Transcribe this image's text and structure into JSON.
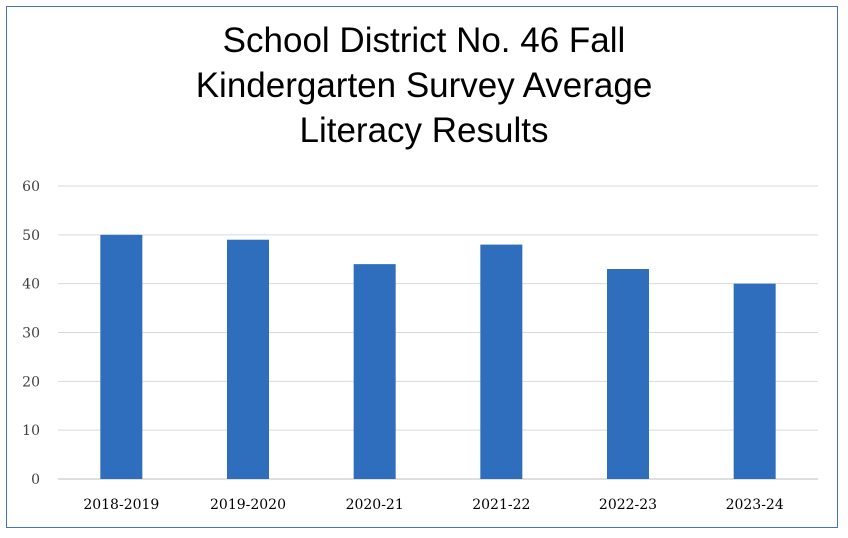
{
  "chart_data": {
    "type": "bar",
    "title_lines": [
      "School District No. 46 Fall",
      "Kindergarten Survey Average",
      "Literacy Results"
    ],
    "categories": [
      "2018-2019",
      "2019-2020",
      "2020-21",
      "2021-22",
      "2022-23",
      "2023-24"
    ],
    "values": [
      50,
      49,
      44,
      48,
      43,
      40
    ],
    "ylim": [
      0,
      60
    ],
    "yticks": [
      0,
      10,
      20,
      30,
      40,
      50,
      60
    ],
    "grid": true,
    "legend": "none",
    "bar_color": "#2f6ebc",
    "border_color": "#4472c4",
    "grid_color": "#d9d9d9",
    "xlabel": "",
    "ylabel": ""
  }
}
